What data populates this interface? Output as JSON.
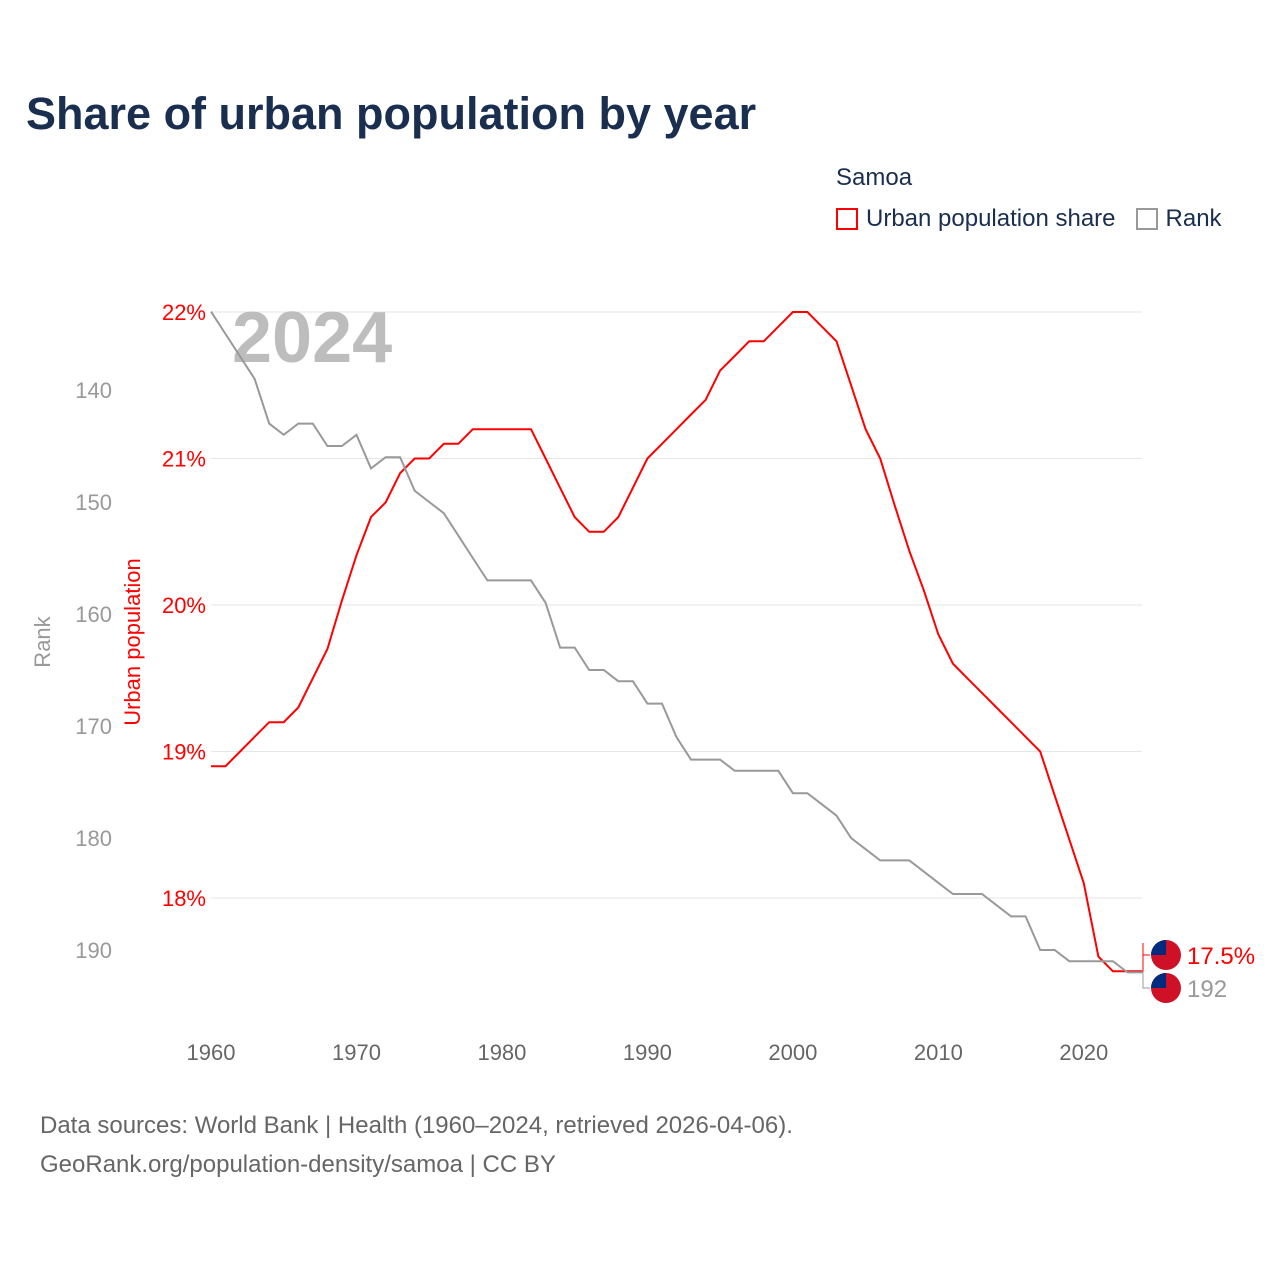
{
  "title": "Share of urban population by year",
  "legend": {
    "title": "Samoa",
    "items": [
      {
        "label": "Urban population share",
        "color": "#ff0000"
      },
      {
        "label": "Rank",
        "color": "#999999"
      }
    ]
  },
  "footer": {
    "line1": "Data sources: World Bank | Health (1960–2024, retrieved 2026-04-06).",
    "line2": "GeoRank.org/population-density/samoa | CC BY"
  },
  "chart_data": {
    "type": "line",
    "title": "Share of urban population by year",
    "year_watermark": "2024",
    "xlabel": "",
    "ylabel_left_outer": "Rank",
    "ylabel_left_inner": "Urban population",
    "x": [
      1960,
      1961,
      1962,
      1963,
      1964,
      1965,
      1966,
      1967,
      1968,
      1969,
      1970,
      1971,
      1972,
      1973,
      1974,
      1975,
      1976,
      1977,
      1978,
      1979,
      1980,
      1981,
      1982,
      1983,
      1984,
      1985,
      1986,
      1987,
      1988,
      1989,
      1990,
      1991,
      1992,
      1993,
      1994,
      1995,
      1996,
      1997,
      1998,
      1999,
      2000,
      2001,
      2002,
      2003,
      2004,
      2005,
      2006,
      2007,
      2008,
      2009,
      2010,
      2011,
      2012,
      2013,
      2014,
      2015,
      2016,
      2017,
      2018,
      2019,
      2020,
      2021,
      2022,
      2023,
      2024
    ],
    "x_ticks": [
      "1960",
      "1970",
      "1980",
      "1990",
      "2000",
      "2010",
      "2020"
    ],
    "share_ticks": [
      "22%",
      "21%",
      "20%",
      "19%",
      "18%"
    ],
    "share_tick_values": [
      22,
      21,
      20,
      19,
      18
    ],
    "rank_ticks": [
      "140",
      "150",
      "160",
      "170",
      "180",
      "190"
    ],
    "rank_tick_values": [
      140,
      150,
      160,
      170,
      180,
      190
    ],
    "share_range": [
      17.25,
      22
    ],
    "rank_range": [
      133,
      194
    ],
    "series": [
      {
        "name": "Urban population share",
        "unit": "%",
        "color": "#ff0000",
        "values": [
          18.9,
          18.9,
          19.0,
          19.1,
          19.2,
          19.2,
          19.3,
          19.5,
          19.7,
          20.03,
          20.34,
          20.6,
          20.7,
          20.9,
          21.0,
          21.0,
          21.1,
          21.1,
          21.2,
          21.2,
          21.2,
          21.2,
          21.2,
          21.0,
          20.8,
          20.6,
          20.5,
          20.5,
          20.6,
          20.8,
          21.0,
          21.1,
          21.2,
          21.3,
          21.4,
          21.6,
          21.7,
          21.8,
          21.8,
          21.9,
          22.0,
          22.0,
          21.9,
          21.8,
          21.5,
          21.2,
          21.0,
          20.68,
          20.37,
          20.1,
          19.8,
          19.6,
          19.5,
          19.4,
          19.3,
          19.2,
          19.1,
          19.0,
          18.7,
          18.4,
          18.1,
          17.6,
          17.5,
          17.5,
          17.5
        ],
        "end_label": "17.5%"
      },
      {
        "name": "Rank",
        "color": "#999999",
        "values": [
          133,
          135,
          137,
          139,
          143,
          144,
          143,
          143,
          145,
          145,
          144,
          147,
          146,
          146,
          149,
          150,
          151,
          153,
          155,
          157,
          157,
          157,
          157,
          159,
          163,
          163,
          165,
          165,
          166,
          166,
          168,
          168,
          171,
          173,
          173,
          173,
          174,
          174,
          174,
          174,
          176,
          176,
          177,
          178,
          180,
          181,
          182,
          182,
          182,
          183,
          184,
          185,
          185,
          185,
          186,
          187,
          187,
          190,
          190,
          191,
          191,
          191,
          191,
          192,
          192
        ],
        "end_label": "192"
      }
    ],
    "grid": true,
    "legend_position": "top-right"
  }
}
